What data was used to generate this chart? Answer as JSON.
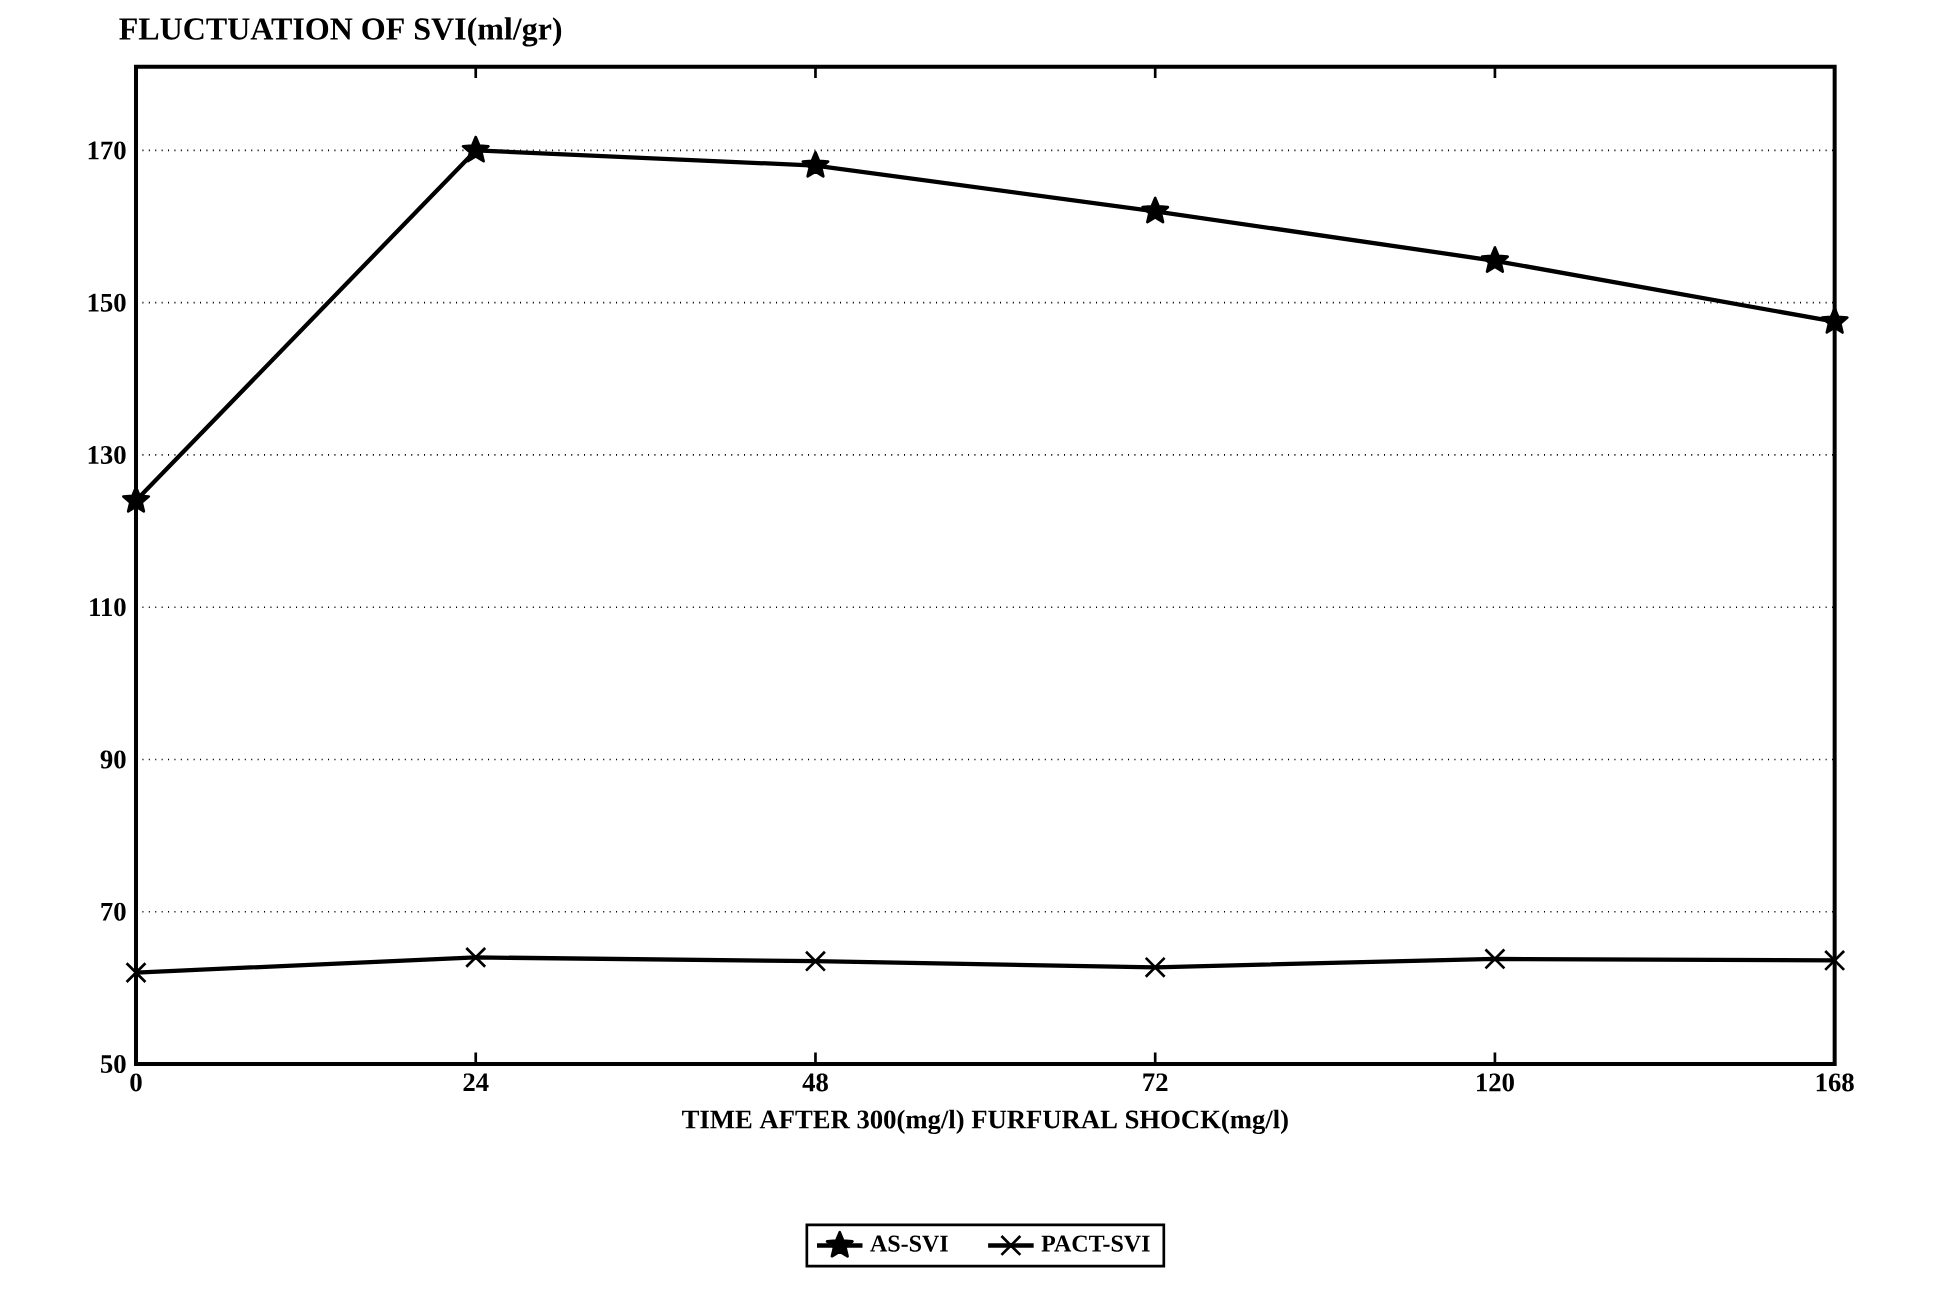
{
  "chart_data": {
    "type": "line",
    "title": "FLUCTUATION OF SVI(ml/gr)",
    "xlabel": "TIME AFTER 300(mg/l) FURFURAL SHOCK(mg/l)",
    "categories": [
      "0",
      "24",
      "48",
      "72",
      "120",
      "168"
    ],
    "series": [
      {
        "name": "AS-SVI",
        "color": "#000000",
        "marker": "star",
        "values": [
          124,
          170,
          168,
          162,
          155.5,
          147.5
        ]
      },
      {
        "name": "PACT-SVI",
        "color": "#000000",
        "marker": "cross",
        "values": [
          62,
          64,
          63.5,
          62.7,
          63.8,
          63.6
        ]
      }
    ],
    "ylim": [
      50,
      181
    ],
    "yticks": [
      50,
      70,
      90,
      110,
      130,
      150,
      170
    ],
    "grid": "y",
    "legend": "bottom",
    "line_style": "solid"
  }
}
